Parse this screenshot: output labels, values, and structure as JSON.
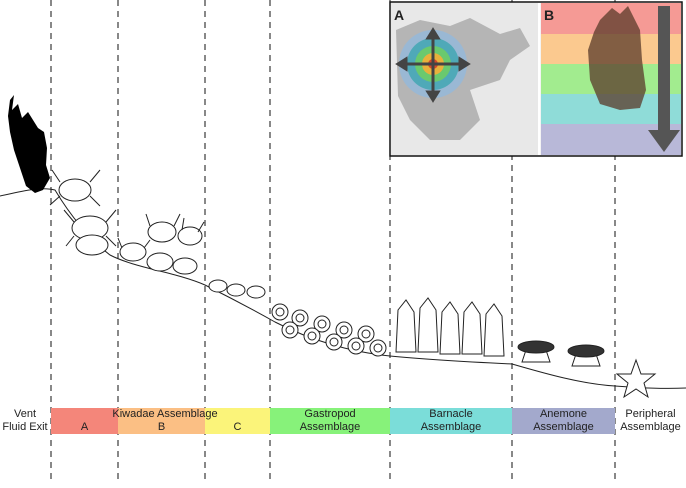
{
  "figure": {
    "inset": {
      "panel_a_letter": "A",
      "panel_b_letter": "B"
    },
    "zones": {
      "vent": {
        "line1": "Vent",
        "line2": "Fluid Exit"
      },
      "kiwadae": {
        "title": "Kiwadae Assemblage",
        "sub_a": "A",
        "sub_b": "B",
        "sub_c": "C"
      },
      "gastropod": {
        "line1": "Gastropod",
        "line2": "Assemblage"
      },
      "barnacle": {
        "line1": "Barnacle",
        "line2": "Assemblage"
      },
      "anemone": {
        "line1": "Anemone",
        "line2": "Assemblage"
      },
      "peripheral": {
        "line1": "Peripheral",
        "line2": "Assemblage"
      }
    },
    "colors": {
      "zone_a": "#f4867a",
      "zone_b": "#fbbf84",
      "zone_c": "#fbf47a",
      "gastropod": "#87f27a",
      "barnacle": "#7bddd9",
      "anemone": "#a3a9cc",
      "band_red": "#f59a95",
      "band_orange": "#fbc98f",
      "band_green": "#a2ec8f",
      "band_cyan": "#8fdcd8",
      "band_lav": "#b8b8d8"
    }
  }
}
